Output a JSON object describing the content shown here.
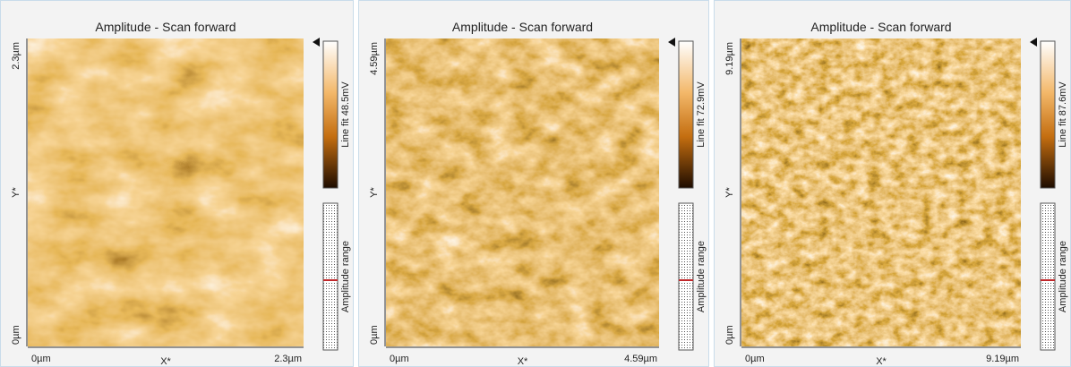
{
  "panels": [
    {
      "title": "Amplitude - Scan forward",
      "y_axis": {
        "top": "2.3µm",
        "mid": "Y*",
        "bottom": "0µm"
      },
      "x_axis": {
        "left": "0µm",
        "mid": "X*",
        "right": "2.3µm"
      },
      "colorbar_label": "Line fit 48.5mV",
      "range_label": "Amplitude range"
    },
    {
      "title": "Amplitude - Scan forward",
      "y_axis": {
        "top": "4.59µm",
        "mid": "Y*",
        "bottom": "0µm"
      },
      "x_axis": {
        "left": "0µm",
        "mid": "X*",
        "right": "4.59µm"
      },
      "colorbar_label": "Line fit 72.9mV",
      "range_label": "Amplitude range"
    },
    {
      "title": "Amplitude - Scan forward",
      "y_axis": {
        "top": "9.19µm",
        "mid": "Y*",
        "bottom": "0µm"
      },
      "x_axis": {
        "left": "0µm",
        "mid": "X*",
        "right": "9.19µm"
      },
      "colorbar_label": "Line fit 87.6mV",
      "range_label": "Amplitude range"
    }
  ]
}
